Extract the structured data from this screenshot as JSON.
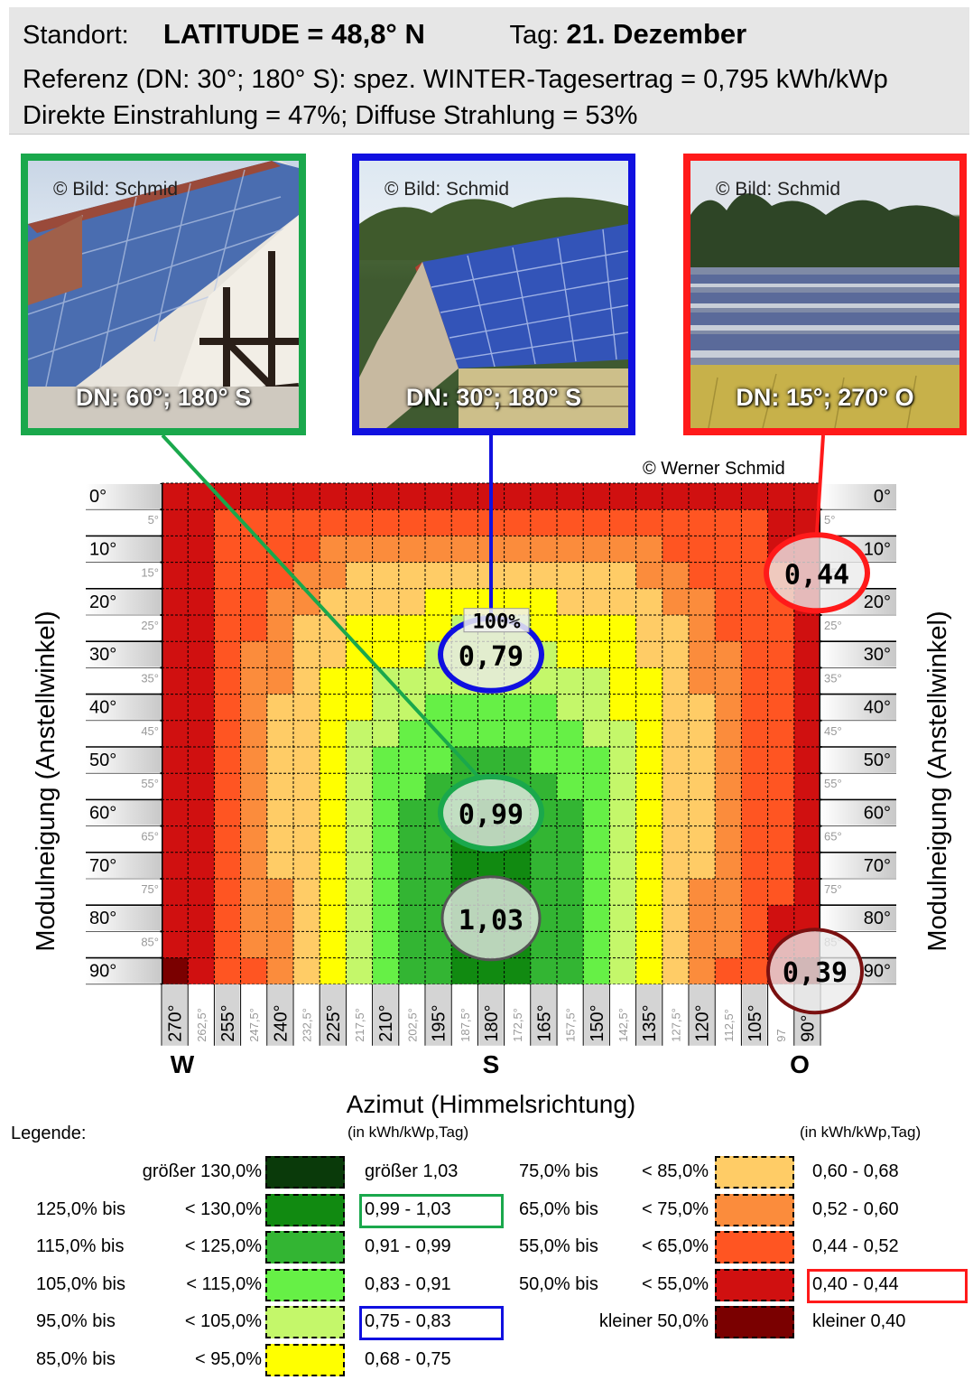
{
  "header": {
    "standort_label": "Standort:",
    "latitude": "LATITUDE = 48,8° N",
    "tag_label": "Tag:",
    "tag_value": "21. Dezember",
    "line2": "Referenz (DN: 30°; 180° S): spez. WINTER-Tagesertrag = 0,795 kWh/kWp",
    "line3": "Direkte Einstrahlung = 47%; Diffuse Strahlung = 53%"
  },
  "photos": [
    {
      "copyright": "© Bild: Schmid",
      "caption": "DN: 60°; 180° S",
      "frame_color": "#1aa84c"
    },
    {
      "copyright": "© Bild: Schmid",
      "caption": "DN: 30°; 180° S",
      "frame_color": "#1010e0"
    },
    {
      "copyright": "© Bild: Schmid",
      "caption": "DN: 15°; 270° O",
      "frame_color": "#ff1a1a"
    }
  ],
  "credit": "© Werner Schmid",
  "chart_data": {
    "type": "heatmap",
    "title": "",
    "xlabel": "Azimut (Himmelsrichtung)",
    "ylabel": "Modulneigung (Anstellwinkel)",
    "x": [
      "270°",
      "262,5°",
      "255°",
      "247,5°",
      "240°",
      "232,5°",
      "225°",
      "217,5°",
      "210°",
      "202,5°",
      "195°",
      "187,5°",
      "180°",
      "172,5°",
      "165°",
      "157,5°",
      "150°",
      "142,5°",
      "135°",
      "127,5°",
      "120°",
      "112,5°",
      "105°",
      "97",
      "90°"
    ],
    "x_major_labels": [
      "270°",
      "255°",
      "240°",
      "225°",
      "210°",
      "195°",
      "180°",
      "165°",
      "150°",
      "135°",
      "120°",
      "105°",
      "90°"
    ],
    "x_minor_labels": [
      "262,5°",
      "247,5°",
      "232,5°",
      "217,5°",
      "202,5°",
      "187,5°",
      "172,5°",
      "157,5°",
      "142,5°",
      "127,5°",
      "112,5°",
      "97"
    ],
    "y_major_labels": [
      "0°",
      "10°",
      "20°",
      "30°",
      "40°",
      "50°",
      "60°",
      "70°",
      "80°",
      "90°"
    ],
    "y_minor_labels": [
      "5°",
      "15°",
      "25°",
      "35°",
      "45°",
      "55°",
      "65°",
      "75°",
      "85°"
    ],
    "direction_labels": {
      "west": "W",
      "south": "S",
      "east": "O"
    },
    "reference_label": "100%",
    "unit": "kWh/kWp,Tag",
    "rows": [
      [
        0.41,
        0.41,
        0.41,
        0.41,
        0.41,
        0.41,
        0.41,
        0.41,
        0.41,
        0.41,
        0.41,
        0.41,
        0.41,
        0.41,
        0.41,
        0.41,
        0.41,
        0.41,
        0.41,
        0.41,
        0.41,
        0.41,
        0.41,
        0.41,
        0.41
      ],
      [
        0.42,
        0.42,
        0.45,
        0.45,
        0.47,
        0.47,
        0.47,
        0.5,
        0.5,
        0.5,
        0.5,
        0.5,
        0.5,
        0.5,
        0.5,
        0.5,
        0.5,
        0.5,
        0.47,
        0.47,
        0.47,
        0.45,
        0.45,
        0.42,
        0.42
      ],
      [
        0.41,
        0.42,
        0.45,
        0.45,
        0.49,
        0.49,
        0.55,
        0.55,
        0.55,
        0.55,
        0.55,
        0.56,
        0.56,
        0.56,
        0.55,
        0.55,
        0.55,
        0.55,
        0.55,
        0.49,
        0.49,
        0.45,
        0.45,
        0.43,
        0.42
      ],
      [
        0.41,
        0.42,
        0.47,
        0.5,
        0.5,
        0.55,
        0.55,
        0.62,
        0.62,
        0.65,
        0.65,
        0.65,
        0.65,
        0.65,
        0.65,
        0.65,
        0.62,
        0.62,
        0.55,
        0.55,
        0.5,
        0.5,
        0.47,
        0.44,
        0.43
      ],
      [
        0.41,
        0.43,
        0.47,
        0.5,
        0.55,
        0.58,
        0.62,
        0.62,
        0.65,
        0.65,
        0.7,
        0.7,
        0.7,
        0.7,
        0.7,
        0.65,
        0.65,
        0.62,
        0.62,
        0.58,
        0.55,
        0.5,
        0.47,
        0.44,
        0.43
      ],
      [
        0.41,
        0.43,
        0.48,
        0.5,
        0.55,
        0.62,
        0.65,
        0.7,
        0.7,
        0.72,
        0.72,
        0.76,
        0.76,
        0.76,
        0.72,
        0.72,
        0.7,
        0.7,
        0.65,
        0.62,
        0.55,
        0.5,
        0.48,
        0.44,
        0.43
      ],
      [
        0.41,
        0.43,
        0.48,
        0.53,
        0.58,
        0.62,
        0.65,
        0.7,
        0.72,
        0.72,
        0.79,
        0.79,
        0.79,
        0.79,
        0.79,
        0.72,
        0.72,
        0.7,
        0.65,
        0.62,
        0.58,
        0.53,
        0.48,
        0.44,
        0.43
      ],
      [
        0.41,
        0.43,
        0.49,
        0.53,
        0.58,
        0.62,
        0.7,
        0.72,
        0.79,
        0.79,
        0.79,
        0.79,
        0.79,
        0.79,
        0.79,
        0.79,
        0.79,
        0.72,
        0.7,
        0.62,
        0.58,
        0.53,
        0.49,
        0.44,
        0.43
      ],
      [
        0.41,
        0.43,
        0.49,
        0.53,
        0.6,
        0.62,
        0.7,
        0.72,
        0.79,
        0.8,
        0.87,
        0.87,
        0.87,
        0.87,
        0.87,
        0.8,
        0.79,
        0.72,
        0.7,
        0.62,
        0.6,
        0.53,
        0.49,
        0.44,
        0.43
      ],
      [
        0.41,
        0.43,
        0.49,
        0.53,
        0.6,
        0.65,
        0.7,
        0.79,
        0.79,
        0.87,
        0.87,
        0.87,
        0.87,
        0.87,
        0.87,
        0.87,
        0.79,
        0.79,
        0.7,
        0.65,
        0.6,
        0.53,
        0.49,
        0.44,
        0.43
      ],
      [
        0.41,
        0.43,
        0.49,
        0.53,
        0.6,
        0.65,
        0.72,
        0.79,
        0.87,
        0.87,
        0.87,
        0.95,
        0.95,
        0.95,
        0.87,
        0.87,
        0.87,
        0.79,
        0.72,
        0.65,
        0.6,
        0.53,
        0.49,
        0.44,
        0.43
      ],
      [
        0.41,
        0.43,
        0.49,
        0.53,
        0.6,
        0.65,
        0.72,
        0.79,
        0.87,
        0.87,
        0.95,
        0.95,
        0.95,
        0.95,
        0.95,
        0.87,
        0.87,
        0.79,
        0.72,
        0.65,
        0.6,
        0.53,
        0.49,
        0.44,
        0.43
      ],
      [
        0.41,
        0.43,
        0.49,
        0.53,
        0.6,
        0.65,
        0.72,
        0.79,
        0.87,
        0.95,
        0.95,
        0.95,
        0.99,
        0.95,
        0.95,
        0.95,
        0.87,
        0.79,
        0.72,
        0.65,
        0.6,
        0.53,
        0.49,
        0.44,
        0.43
      ],
      [
        0.41,
        0.43,
        0.49,
        0.53,
        0.6,
        0.65,
        0.72,
        0.79,
        0.87,
        0.95,
        0.95,
        1.0,
        1.0,
        1.0,
        0.95,
        0.95,
        0.87,
        0.79,
        0.72,
        0.65,
        0.6,
        0.53,
        0.49,
        0.44,
        0.43
      ],
      [
        0.41,
        0.43,
        0.49,
        0.53,
        0.6,
        0.65,
        0.72,
        0.79,
        0.87,
        0.95,
        0.95,
        1.01,
        1.01,
        1.01,
        0.95,
        0.95,
        0.87,
        0.79,
        0.72,
        0.65,
        0.6,
        0.53,
        0.49,
        0.44,
        0.43
      ],
      [
        0.41,
        0.43,
        0.49,
        0.53,
        0.58,
        0.65,
        0.72,
        0.79,
        0.87,
        0.95,
        0.95,
        1.01,
        1.01,
        1.01,
        0.95,
        0.95,
        0.87,
        0.79,
        0.72,
        0.65,
        0.58,
        0.53,
        0.49,
        0.44,
        0.42
      ],
      [
        0.41,
        0.43,
        0.48,
        0.53,
        0.58,
        0.65,
        0.7,
        0.79,
        0.87,
        0.95,
        0.95,
        1.02,
        1.02,
        1.02,
        0.95,
        0.95,
        0.87,
        0.79,
        0.7,
        0.65,
        0.58,
        0.53,
        0.48,
        0.43,
        0.42
      ],
      [
        0.41,
        0.43,
        0.48,
        0.53,
        0.58,
        0.62,
        0.7,
        0.79,
        0.87,
        0.95,
        0.95,
        1.01,
        1.02,
        1.01,
        0.95,
        0.95,
        0.87,
        0.79,
        0.7,
        0.62,
        0.58,
        0.53,
        0.48,
        0.43,
        0.42
      ],
      [
        0.39,
        0.42,
        0.47,
        0.5,
        0.55,
        0.62,
        0.7,
        0.79,
        0.87,
        0.95,
        0.95,
        0.99,
        0.99,
        0.99,
        0.95,
        0.95,
        0.87,
        0.79,
        0.7,
        0.62,
        0.55,
        0.5,
        0.47,
        0.42,
        0.39
      ]
    ],
    "callouts": [
      {
        "label": "0,44",
        "color": "#ff1a1a"
      },
      {
        "label": "0,79",
        "color": "#1010e0"
      },
      {
        "label": "0,99",
        "color": "#1aa84c"
      },
      {
        "label": "1,03",
        "color": "#555555"
      },
      {
        "label": "0,39",
        "color": "#7a1010"
      }
    ]
  },
  "legend": {
    "title": "Legende:",
    "unit_left": "(in kWh/kWp,Tag)",
    "unit_right": "(in kWh/kWp,Tag)",
    "left": [
      {
        "pct_from": "",
        "pct_to": "größer 130,0%",
        "value": "größer 1,03",
        "color": "#0a3a0a"
      },
      {
        "pct_from": "125,0% bis",
        "pct_to": "< 130,0%",
        "value": "0,99 - 1,03",
        "color": "#118a11",
        "highlight": "#1aa84c"
      },
      {
        "pct_from": "115,0% bis",
        "pct_to": "< 125,0%",
        "value": "0,91 - 0,99",
        "color": "#33b533"
      },
      {
        "pct_from": "105,0% bis",
        "pct_to": "< 115,0%",
        "value": "0,83 - 0,91",
        "color": "#66f046"
      },
      {
        "pct_from": "95,0% bis",
        "pct_to": "< 105,0%",
        "value": "0,75 - 0,83",
        "color": "#c4f76a",
        "highlight": "#1010e0"
      },
      {
        "pct_from": "85,0% bis",
        "pct_to": "< 95,0%",
        "value": "0,68 - 0,75",
        "color": "#ffff00"
      }
    ],
    "right": [
      {
        "pct_from": "75,0% bis",
        "pct_to": "< 85,0%",
        "value": "0,60 - 0,68",
        "color": "#ffcc66"
      },
      {
        "pct_from": "65,0% bis",
        "pct_to": "< 75,0%",
        "value": "0,52 - 0,60",
        "color": "#fb8c3c"
      },
      {
        "pct_from": "55,0% bis",
        "pct_to": "< 65,0%",
        "value": "0,44 - 0,52",
        "color": "#ff5522"
      },
      {
        "pct_from": "50,0% bis",
        "pct_to": "< 55,0%",
        "value": "0,40 - 0,44",
        "color": "#d01010",
        "highlight": "#ff1a1a"
      },
      {
        "pct_from": "",
        "pct_to": "kleiner 50,0%",
        "value": "kleiner 0,40",
        "color": "#7a0000"
      }
    ]
  }
}
